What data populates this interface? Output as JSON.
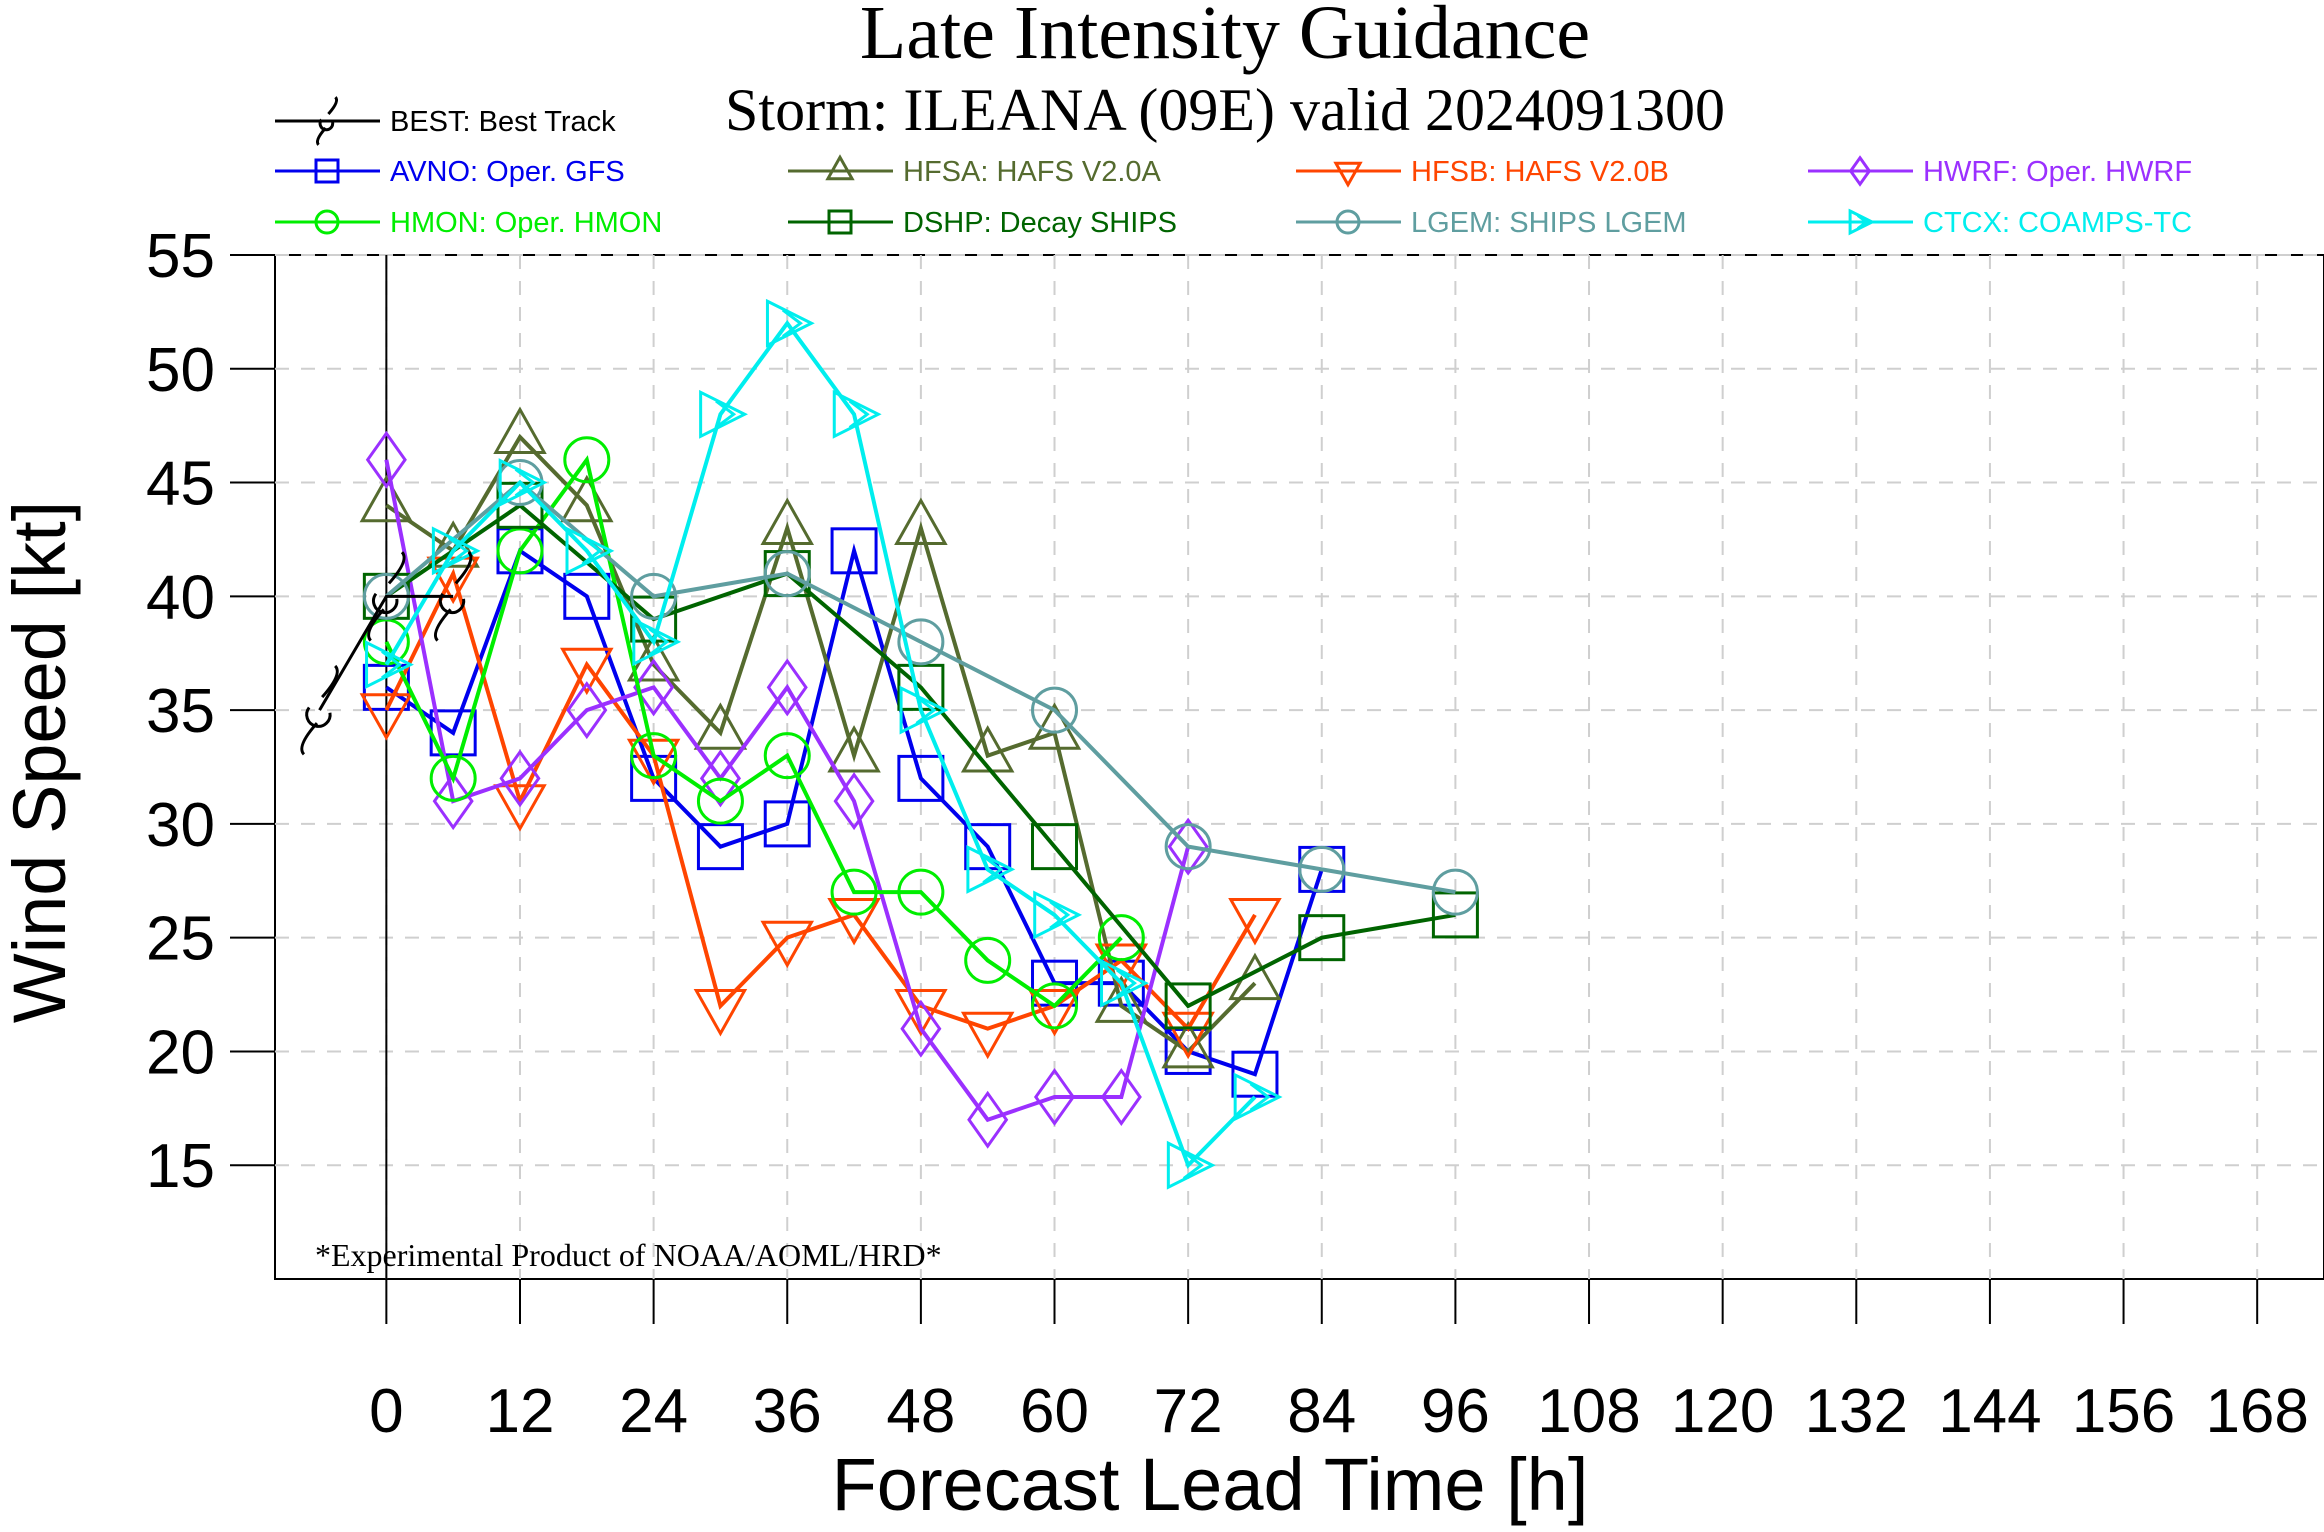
{
  "chart_data": {
    "type": "line",
    "title": "Late Intensity Guidance",
    "subtitle": "Storm: ILEANA (09E) valid 2024091300",
    "xlabel": "Forecast Lead Time [h]",
    "ylabel": "Wind Speed [kt]",
    "xlim": [
      -10,
      174
    ],
    "ylim": [
      10,
      55
    ],
    "xticks": [
      0,
      12,
      24,
      36,
      48,
      60,
      72,
      84,
      96,
      108,
      120,
      132,
      144,
      156,
      168
    ],
    "yticks": [
      15,
      20,
      25,
      30,
      35,
      40,
      45,
      50,
      55
    ],
    "grid": true,
    "footnote": "*Experimental Product of NOAA/AOML/HRD*",
    "legend_position": "top",
    "best_track": {
      "name": "BEST: Best Track",
      "color": "#000000",
      "marker": "hurricane",
      "points": [
        [
          -6,
          35
        ],
        [
          0,
          40
        ],
        [
          6,
          40
        ]
      ]
    },
    "series": [
      {
        "name": "AVNO: Oper. GFS",
        "color": "#0000ee",
        "marker": "square",
        "points": [
          [
            0,
            36
          ],
          [
            6,
            34
          ],
          [
            12,
            42
          ],
          [
            18,
            40
          ],
          [
            24,
            32
          ],
          [
            30,
            29
          ],
          [
            36,
            30
          ],
          [
            42,
            42
          ],
          [
            48,
            32
          ],
          [
            54,
            29
          ],
          [
            60,
            23
          ],
          [
            66,
            23
          ],
          [
            72,
            20
          ],
          [
            78,
            19
          ],
          [
            84,
            28
          ]
        ]
      },
      {
        "name": "HFSA: HAFS V2.0A",
        "color": "#556b2f",
        "marker": "triangle",
        "points": [
          [
            0,
            44
          ],
          [
            6,
            42
          ],
          [
            12,
            47
          ],
          [
            18,
            44
          ],
          [
            24,
            37
          ],
          [
            30,
            34
          ],
          [
            36,
            43
          ],
          [
            42,
            33
          ],
          [
            48,
            43
          ],
          [
            54,
            33
          ],
          [
            60,
            34
          ],
          [
            66,
            22
          ],
          [
            72,
            20
          ],
          [
            78,
            23
          ]
        ]
      },
      {
        "name": "HFSB: HAFS V2.0B",
        "color": "#ff4500",
        "marker": "triangle-down",
        "points": [
          [
            0,
            35
          ],
          [
            6,
            41
          ],
          [
            12,
            31
          ],
          [
            18,
            37
          ],
          [
            24,
            33
          ],
          [
            30,
            22
          ],
          [
            36,
            25
          ],
          [
            42,
            26
          ],
          [
            48,
            22
          ],
          [
            54,
            21
          ],
          [
            60,
            22
          ],
          [
            66,
            24
          ],
          [
            72,
            21
          ],
          [
            78,
            26
          ]
        ]
      },
      {
        "name": "HWRF: Oper. HWRF",
        "color": "#9b30ff",
        "marker": "diamond",
        "points": [
          [
            0,
            46
          ],
          [
            6,
            31
          ],
          [
            12,
            32
          ],
          [
            18,
            35
          ],
          [
            24,
            36
          ],
          [
            30,
            32
          ],
          [
            36,
            36
          ],
          [
            42,
            31
          ],
          [
            48,
            21
          ],
          [
            54,
            17
          ],
          [
            60,
            18
          ],
          [
            66,
            18
          ],
          [
            72,
            29
          ]
        ]
      },
      {
        "name": "HMON: Oper. HMON",
        "color": "#00ee00",
        "marker": "circle",
        "points": [
          [
            0,
            38
          ],
          [
            6,
            32
          ],
          [
            12,
            42
          ],
          [
            18,
            46
          ],
          [
            24,
            33
          ],
          [
            30,
            31
          ],
          [
            36,
            33
          ],
          [
            42,
            27
          ],
          [
            48,
            27
          ],
          [
            54,
            24
          ],
          [
            60,
            22
          ],
          [
            66,
            25
          ]
        ]
      },
      {
        "name": "DSHP: Decay SHIPS",
        "color": "#006400",
        "marker": "square",
        "points": [
          [
            0,
            40
          ],
          [
            12,
            44
          ],
          [
            24,
            39
          ],
          [
            36,
            41
          ],
          [
            48,
            36
          ],
          [
            60,
            29
          ],
          [
            72,
            22
          ],
          [
            84,
            25
          ],
          [
            96,
            26
          ]
        ]
      },
      {
        "name": "LGEM: SHIPS LGEM",
        "color": "#5f9ea0",
        "marker": "circle",
        "points": [
          [
            0,
            40
          ],
          [
            12,
            45
          ],
          [
            24,
            40
          ],
          [
            36,
            41
          ],
          [
            48,
            38
          ],
          [
            60,
            35
          ],
          [
            72,
            29
          ],
          [
            84,
            28
          ],
          [
            96,
            27
          ]
        ]
      },
      {
        "name": "CTCX: COAMPS-TC",
        "color": "#00eeee",
        "marker": "arrow",
        "points": [
          [
            0,
            37
          ],
          [
            6,
            42
          ],
          [
            12,
            45
          ],
          [
            18,
            42
          ],
          [
            24,
            38
          ],
          [
            30,
            48
          ],
          [
            36,
            52
          ],
          [
            42,
            48
          ],
          [
            48,
            35
          ],
          [
            54,
            28
          ],
          [
            60,
            26
          ],
          [
            66,
            23
          ],
          [
            72,
            15
          ],
          [
            78,
            18
          ]
        ]
      }
    ]
  }
}
